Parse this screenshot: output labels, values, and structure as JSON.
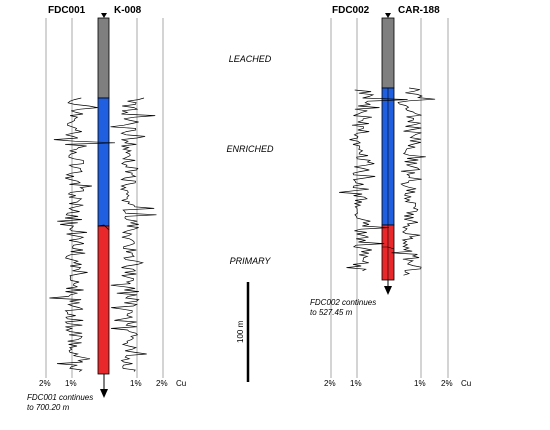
{
  "wells": [
    {
      "id": "FDC001",
      "twin_id": "K-008",
      "note": [
        "FDC001 continues",
        "to 700.20 m"
      ],
      "axis_left": [
        "2%",
        "1%"
      ],
      "axis_right": [
        "1%",
        "2%",
        "Cu"
      ]
    },
    {
      "id": "FDC002",
      "twin_id": "CAR-188",
      "note": [
        "FDC002 continues",
        "to 527.45  m"
      ],
      "axis_left": [
        "2%",
        "1%"
      ],
      "axis_right": [
        "1%",
        "2%",
        "Cu"
      ]
    }
  ],
  "zones": [
    "LEACHED",
    "ENRICHED",
    "PRIMARY"
  ],
  "zone_colors": {
    "LEACHED": "#7f7f7f",
    "ENRICHED": "#1f5fe0",
    "PRIMARY": "#e8282a"
  },
  "scale_bar": {
    "label": "100 m"
  }
}
